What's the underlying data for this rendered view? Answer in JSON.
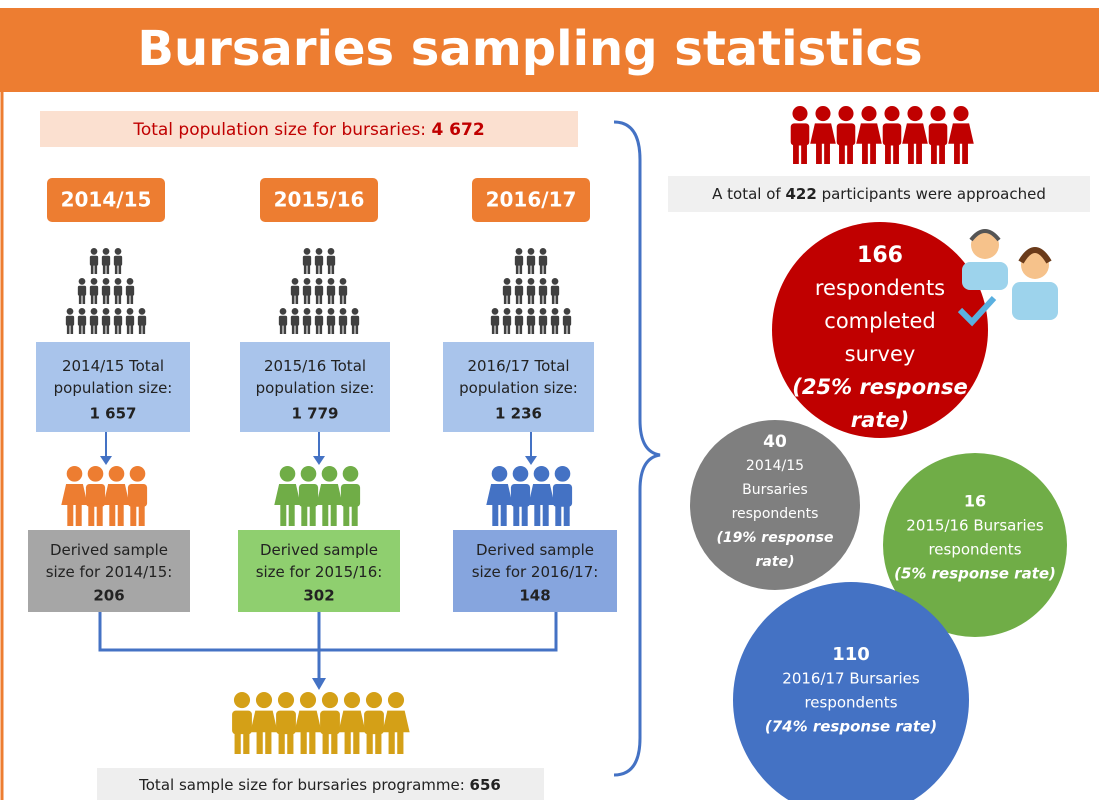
{
  "title": "Bursaries sampling statistics",
  "population_banner": {
    "label": "Total population size for bursaries:",
    "value": "4 672"
  },
  "years": [
    {
      "year": "2014/15",
      "population_label": "2014/15 Total population size:",
      "population_value": "1 657",
      "sample_label": "Derived sample size for 2014/15:",
      "sample_value": "206"
    },
    {
      "year": "2015/16",
      "population_label": "2015/16 Total population size:",
      "population_value": "1 779",
      "sample_label": "Derived sample size for 2015/16:",
      "sample_value": "302"
    },
    {
      "year": "2016/17",
      "population_label": "2016/17 Total population size:",
      "population_value": "1 236",
      "sample_label": "Derived sample size for 2016/17:",
      "sample_value": "148"
    }
  ],
  "total_sample": {
    "label": "Total sample size for bursaries programme:",
    "value": "656"
  },
  "approached": {
    "prefix": "A total of",
    "value": "422",
    "suffix": "participants were approached"
  },
  "completed": {
    "value": "166",
    "lines": [
      "respondents",
      "completed",
      "survey"
    ],
    "rate_lines": [
      "(25% response",
      "rate)"
    ]
  },
  "respondents": [
    {
      "value": "40",
      "lines": [
        "2014/15",
        "Bursaries",
        "respondents"
      ],
      "rate_lines": [
        "(19% response",
        "rate)"
      ]
    },
    {
      "value": "16",
      "lines": [
        "2015/16 Bursaries",
        "respondents"
      ],
      "rate_lines": [
        "(5% response rate)"
      ]
    },
    {
      "value": "110",
      "lines": [
        "2016/17 Bursaries",
        "respondents"
      ],
      "rate_lines": [
        "(74% response rate)"
      ]
    }
  ]
}
